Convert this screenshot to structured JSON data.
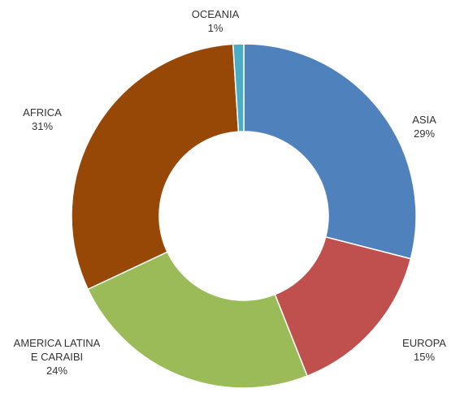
{
  "chart_data": {
    "type": "pie",
    "donut": true,
    "unit": "%",
    "categories": [
      "ASIA",
      "EUROPA",
      "AMERICA LATINA E CARAIBI",
      "AFRICA",
      "OCEANIA"
    ],
    "values": [
      29,
      15,
      24,
      31,
      1
    ],
    "colors": [
      "#4f81bd",
      "#c0504d",
      "#9bbb59",
      "#974706",
      "#4bacc6"
    ],
    "labels": [
      {
        "lines": [
          "ASIA"
        ],
        "percent": "29%"
      },
      {
        "lines": [
          "EUROPA"
        ],
        "percent": "15%"
      },
      {
        "lines": [
          "AMERICA LATINA",
          "E CARAIBI"
        ],
        "percent": "24%"
      },
      {
        "lines": [
          "AFRICA"
        ],
        "percent": "31%"
      },
      {
        "lines": [
          "OCEANIA"
        ],
        "percent": "1%"
      }
    ],
    "legend": "none"
  }
}
